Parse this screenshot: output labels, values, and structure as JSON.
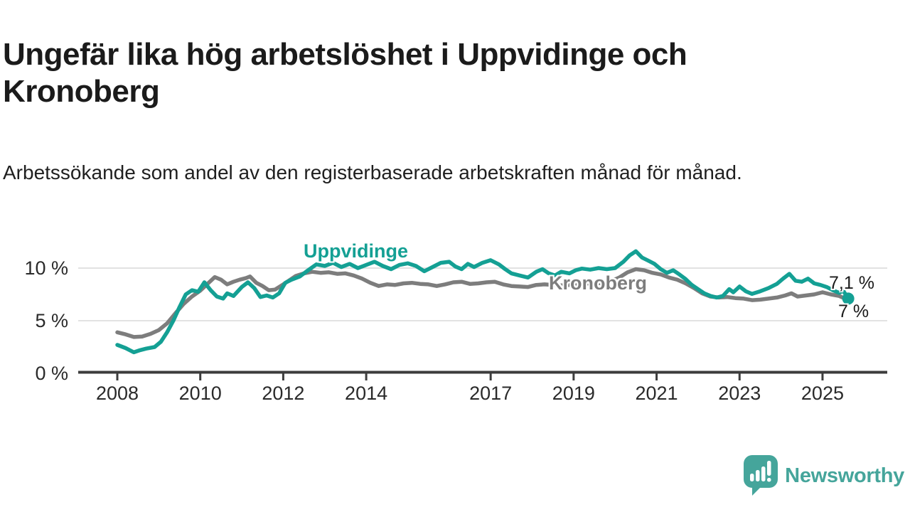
{
  "header": {
    "title": "Ungefär lika hög arbetslöshet i Uppvidinge och Kronoberg",
    "subtitle": "Arbetssökande som andel av den registerbaserade arbetskraften månad för månad."
  },
  "footer": {
    "brand": "Newsworthy",
    "brand_color": "#45a59b",
    "logo_icon": "speech-bubble-bar-chart-exclamation"
  },
  "colors": {
    "background": "#ffffff",
    "title_text": "#1b1b1b",
    "axis_text": "#2a2a2a",
    "axis_line": "#3d3d3d",
    "gridline": "#e2e2e2",
    "value_label_text": "#1a1a1a"
  },
  "chart_data": {
    "type": "line",
    "title": "Ungefär lika hög arbetslöshet i Uppvidinge och Kronoberg",
    "subtitle": "Arbetssökande som andel av den registerbaserade arbetskraften månad för månad.",
    "unit": "%",
    "xlabel": "",
    "ylabel": "",
    "grid": "horizontal",
    "legend": "inline-labels",
    "xlim": [
      2007.9,
      2025.75
    ],
    "ylim": [
      0,
      12.3
    ],
    "x_ticks": [
      2008,
      2010,
      2012,
      2014,
      2017,
      2019,
      2021,
      2023,
      2025
    ],
    "y_ticks": [
      {
        "value": 0,
        "label": "0 %"
      },
      {
        "value": 5,
        "label": "5 %"
      },
      {
        "value": 10,
        "label": "10 %"
      }
    ],
    "series": [
      {
        "name": "Uppvidinge",
        "color": "#14a094",
        "end_label": "7,1 %",
        "end_value": 7.1,
        "end_dot": true,
        "points": [
          [
            2008.0,
            2.7
          ],
          [
            2008.2,
            2.4
          ],
          [
            2008.4,
            2.0
          ],
          [
            2008.55,
            2.2
          ],
          [
            2008.7,
            2.35
          ],
          [
            2008.9,
            2.5
          ],
          [
            2009.05,
            3.0
          ],
          [
            2009.2,
            3.9
          ],
          [
            2009.35,
            5.0
          ],
          [
            2009.5,
            6.3
          ],
          [
            2009.65,
            7.5
          ],
          [
            2009.8,
            7.9
          ],
          [
            2009.95,
            7.75
          ],
          [
            2010.1,
            8.65
          ],
          [
            2010.25,
            7.9
          ],
          [
            2010.4,
            7.3
          ],
          [
            2010.55,
            7.1
          ],
          [
            2010.65,
            7.6
          ],
          [
            2010.8,
            7.35
          ],
          [
            2011.0,
            8.2
          ],
          [
            2011.15,
            8.65
          ],
          [
            2011.3,
            8.1
          ],
          [
            2011.45,
            7.25
          ],
          [
            2011.6,
            7.4
          ],
          [
            2011.75,
            7.2
          ],
          [
            2011.9,
            7.6
          ],
          [
            2012.05,
            8.6
          ],
          [
            2012.2,
            8.9
          ],
          [
            2012.4,
            9.2
          ],
          [
            2012.6,
            9.8
          ],
          [
            2012.8,
            10.35
          ],
          [
            2013.0,
            10.2
          ],
          [
            2013.2,
            10.5
          ],
          [
            2013.4,
            10.1
          ],
          [
            2013.6,
            10.4
          ],
          [
            2013.8,
            10.0
          ],
          [
            2014.0,
            10.3
          ],
          [
            2014.2,
            10.6
          ],
          [
            2014.4,
            10.2
          ],
          [
            2014.6,
            9.9
          ],
          [
            2014.8,
            10.3
          ],
          [
            2015.0,
            10.45
          ],
          [
            2015.2,
            10.2
          ],
          [
            2015.4,
            9.7
          ],
          [
            2015.6,
            10.1
          ],
          [
            2015.8,
            10.5
          ],
          [
            2016.0,
            10.6
          ],
          [
            2016.15,
            10.15
          ],
          [
            2016.3,
            9.9
          ],
          [
            2016.45,
            10.4
          ],
          [
            2016.6,
            10.1
          ],
          [
            2016.8,
            10.5
          ],
          [
            2017.0,
            10.75
          ],
          [
            2017.2,
            10.35
          ],
          [
            2017.35,
            9.9
          ],
          [
            2017.5,
            9.5
          ],
          [
            2017.7,
            9.3
          ],
          [
            2017.9,
            9.1
          ],
          [
            2018.1,
            9.65
          ],
          [
            2018.25,
            9.9
          ],
          [
            2018.4,
            9.5
          ],
          [
            2018.55,
            9.3
          ],
          [
            2018.7,
            9.65
          ],
          [
            2018.9,
            9.5
          ],
          [
            2019.05,
            9.8
          ],
          [
            2019.2,
            9.95
          ],
          [
            2019.4,
            9.85
          ],
          [
            2019.6,
            10.0
          ],
          [
            2019.8,
            9.9
          ],
          [
            2020.0,
            10.0
          ],
          [
            2020.2,
            10.6
          ],
          [
            2020.35,
            11.2
          ],
          [
            2020.5,
            11.6
          ],
          [
            2020.65,
            11.0
          ],
          [
            2020.8,
            10.7
          ],
          [
            2020.95,
            10.4
          ],
          [
            2021.1,
            9.9
          ],
          [
            2021.25,
            9.55
          ],
          [
            2021.4,
            9.8
          ],
          [
            2021.55,
            9.4
          ],
          [
            2021.7,
            8.95
          ],
          [
            2021.85,
            8.4
          ],
          [
            2022.0,
            8.0
          ],
          [
            2022.15,
            7.6
          ],
          [
            2022.3,
            7.35
          ],
          [
            2022.45,
            7.2
          ],
          [
            2022.6,
            7.35
          ],
          [
            2022.75,
            8.0
          ],
          [
            2022.85,
            7.7
          ],
          [
            2023.0,
            8.25
          ],
          [
            2023.15,
            7.8
          ],
          [
            2023.3,
            7.55
          ],
          [
            2023.5,
            7.8
          ],
          [
            2023.7,
            8.1
          ],
          [
            2023.9,
            8.5
          ],
          [
            2024.05,
            9.0
          ],
          [
            2024.2,
            9.45
          ],
          [
            2024.35,
            8.8
          ],
          [
            2024.5,
            8.7
          ],
          [
            2024.65,
            9.0
          ],
          [
            2024.8,
            8.55
          ],
          [
            2024.95,
            8.4
          ],
          [
            2025.1,
            8.2
          ],
          [
            2025.25,
            7.9
          ],
          [
            2025.4,
            7.65
          ],
          [
            2025.5,
            7.85
          ],
          [
            2025.62,
            7.1
          ]
        ]
      },
      {
        "name": "Kronoberg",
        "color": "#7d7d7d",
        "end_label": "7 %",
        "end_value": 7.0,
        "end_dot": false,
        "points": [
          [
            2008.0,
            3.9
          ],
          [
            2008.2,
            3.7
          ],
          [
            2008.4,
            3.45
          ],
          [
            2008.6,
            3.5
          ],
          [
            2008.8,
            3.75
          ],
          [
            2009.0,
            4.1
          ],
          [
            2009.2,
            4.75
          ],
          [
            2009.4,
            5.7
          ],
          [
            2009.6,
            6.6
          ],
          [
            2009.8,
            7.3
          ],
          [
            2010.0,
            7.85
          ],
          [
            2010.2,
            8.6
          ],
          [
            2010.35,
            9.15
          ],
          [
            2010.5,
            8.9
          ],
          [
            2010.65,
            8.45
          ],
          [
            2010.8,
            8.7
          ],
          [
            2010.95,
            8.9
          ],
          [
            2011.1,
            9.05
          ],
          [
            2011.2,
            9.2
          ],
          [
            2011.35,
            8.6
          ],
          [
            2011.5,
            8.3
          ],
          [
            2011.65,
            7.9
          ],
          [
            2011.8,
            7.95
          ],
          [
            2012.0,
            8.45
          ],
          [
            2012.15,
            8.85
          ],
          [
            2012.3,
            9.25
          ],
          [
            2012.5,
            9.5
          ],
          [
            2012.7,
            9.65
          ],
          [
            2012.9,
            9.55
          ],
          [
            2013.1,
            9.6
          ],
          [
            2013.3,
            9.45
          ],
          [
            2013.5,
            9.5
          ],
          [
            2013.7,
            9.3
          ],
          [
            2013.9,
            9.0
          ],
          [
            2014.1,
            8.6
          ],
          [
            2014.3,
            8.3
          ],
          [
            2014.5,
            8.45
          ],
          [
            2014.7,
            8.4
          ],
          [
            2014.9,
            8.55
          ],
          [
            2015.1,
            8.6
          ],
          [
            2015.3,
            8.5
          ],
          [
            2015.5,
            8.45
          ],
          [
            2015.7,
            8.3
          ],
          [
            2015.9,
            8.45
          ],
          [
            2016.1,
            8.65
          ],
          [
            2016.3,
            8.7
          ],
          [
            2016.5,
            8.5
          ],
          [
            2016.7,
            8.55
          ],
          [
            2016.9,
            8.65
          ],
          [
            2017.1,
            8.7
          ],
          [
            2017.3,
            8.45
          ],
          [
            2017.5,
            8.3
          ],
          [
            2017.7,
            8.25
          ],
          [
            2017.9,
            8.2
          ],
          [
            2018.1,
            8.4
          ],
          [
            2018.3,
            8.45
          ],
          [
            2018.5,
            8.4
          ],
          [
            2018.7,
            8.35
          ],
          [
            2018.9,
            8.4
          ],
          [
            2019.1,
            8.5
          ],
          [
            2019.3,
            8.55
          ],
          [
            2019.5,
            8.5
          ],
          [
            2019.7,
            8.6
          ],
          [
            2019.9,
            8.75
          ],
          [
            2020.1,
            9.1
          ],
          [
            2020.3,
            9.6
          ],
          [
            2020.5,
            9.9
          ],
          [
            2020.7,
            9.8
          ],
          [
            2020.9,
            9.55
          ],
          [
            2021.1,
            9.4
          ],
          [
            2021.3,
            9.1
          ],
          [
            2021.5,
            8.9
          ],
          [
            2021.7,
            8.55
          ],
          [
            2021.9,
            8.1
          ],
          [
            2022.1,
            7.6
          ],
          [
            2022.3,
            7.3
          ],
          [
            2022.5,
            7.2
          ],
          [
            2022.7,
            7.25
          ],
          [
            2022.9,
            7.15
          ],
          [
            2023.1,
            7.1
          ],
          [
            2023.3,
            6.95
          ],
          [
            2023.5,
            7.0
          ],
          [
            2023.7,
            7.1
          ],
          [
            2023.9,
            7.2
          ],
          [
            2024.1,
            7.4
          ],
          [
            2024.25,
            7.6
          ],
          [
            2024.4,
            7.3
          ],
          [
            2024.6,
            7.4
          ],
          [
            2024.8,
            7.5
          ],
          [
            2025.0,
            7.7
          ],
          [
            2025.2,
            7.5
          ],
          [
            2025.4,
            7.35
          ],
          [
            2025.6,
            7.0
          ]
        ]
      }
    ]
  }
}
